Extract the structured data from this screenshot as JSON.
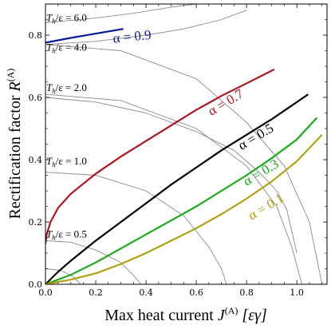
{
  "chart_data": {
    "type": "line",
    "title": "",
    "xlabel": "Max heat current J^(A) [εγ]",
    "ylabel": "Rectification factor R^(A)",
    "xlabel_parts": {
      "main": "Max heat current ",
      "sym": "J",
      "sup": "(A)",
      "unit": "[εγ]"
    },
    "ylabel_parts": {
      "main": "Rectification factor ",
      "sym": "R",
      "sup": "(A)"
    },
    "xlim": [
      0,
      1.12
    ],
    "ylim": [
      0,
      0.9
    ],
    "xticks": [
      0.0,
      0.2,
      0.4,
      0.6,
      0.8,
      1.0
    ],
    "yticks": [
      0.0,
      0.2,
      0.4,
      0.6,
      0.8
    ],
    "xtick_labels": [
      "0.0",
      "0.2",
      "0.4",
      "0.6",
      "0.8",
      "1.0"
    ],
    "ytick_labels": [
      "0.0",
      "0.2",
      "0.4",
      "0.6",
      "0.8"
    ],
    "grid": false,
    "series": [
      {
        "name": "α = 0.9",
        "color": "#0d1a9a",
        "x": [
          0.0,
          0.1,
          0.2,
          0.31
        ],
        "y": [
          0.776,
          0.791,
          0.805,
          0.82
        ]
      },
      {
        "name": "α = 0.7",
        "color": "#b0141e",
        "x": [
          0.0,
          0.005,
          0.02,
          0.05,
          0.1,
          0.2,
          0.3,
          0.4,
          0.5,
          0.6,
          0.7,
          0.8,
          0.91
        ],
        "y": [
          0.13,
          0.16,
          0.2,
          0.245,
          0.29,
          0.355,
          0.41,
          0.46,
          0.51,
          0.56,
          0.605,
          0.645,
          0.69
        ]
      },
      {
        "name": "α = 0.5",
        "color": "#000000",
        "x": [
          0.0,
          0.05,
          0.1,
          0.2,
          0.3,
          0.4,
          0.5,
          0.6,
          0.7,
          0.8,
          0.9,
          1.0,
          1.045
        ],
        "y": [
          0.0,
          0.04,
          0.075,
          0.14,
          0.2,
          0.26,
          0.32,
          0.375,
          0.43,
          0.48,
          0.53,
          0.585,
          0.61
        ]
      },
      {
        "name": "α = 0.3",
        "color": "#1aaa1a",
        "x": [
          0.0,
          0.1,
          0.2,
          0.3,
          0.4,
          0.5,
          0.6,
          0.7,
          0.8,
          0.9,
          1.0,
          1.08
        ],
        "y": [
          0.0,
          0.03,
          0.07,
          0.115,
          0.16,
          0.205,
          0.25,
          0.3,
          0.35,
          0.405,
          0.465,
          0.535
        ]
      },
      {
        "name": "α = 0.1",
        "color": "#b0a012",
        "x": [
          0.0,
          0.1,
          0.2,
          0.3,
          0.4,
          0.5,
          0.6,
          0.7,
          0.8,
          0.9,
          1.0,
          1.1
        ],
        "y": [
          0.0,
          0.015,
          0.035,
          0.065,
          0.1,
          0.14,
          0.18,
          0.225,
          0.275,
          0.33,
          0.395,
          0.48
        ]
      }
    ],
    "temperature_curves": {
      "color": "#8a8a8a",
      "description_points": [
        {
          "label": "T_h/ε = 6.0",
          "x": [
            0.0,
            0.2,
            0.35,
            0.5,
            0.6
          ],
          "y": [
            0.84,
            0.855,
            0.87,
            0.89,
            0.9
          ]
        },
        {
          "label": "T_h/ε = 4.0",
          "x": [
            0.0,
            0.2,
            0.4,
            0.55,
            0.7,
            0.8
          ],
          "y": [
            0.77,
            0.78,
            0.8,
            0.82,
            0.85,
            0.88
          ]
        },
        {
          "label": "T_h/ε = 2.0",
          "x": [
            0.0,
            0.2,
            0.4,
            0.6,
            0.75,
            0.85,
            0.92,
            0.96,
            1.0
          ],
          "y": [
            0.6,
            0.585,
            0.55,
            0.49,
            0.43,
            0.36,
            0.3,
            0.24,
            0.1
          ]
        },
        {
          "label": "T_h/ε = 1.0",
          "x": [
            0.0,
            0.2,
            0.4,
            0.55,
            0.65,
            0.7,
            0.72
          ],
          "y": [
            0.36,
            0.35,
            0.3,
            0.22,
            0.12,
            0.05,
            0.0
          ]
        },
        {
          "label": "T_h/ε = 0.5",
          "x": [
            0.0,
            0.1,
            0.2,
            0.3,
            0.36,
            0.38
          ],
          "y": [
            0.14,
            0.135,
            0.11,
            0.07,
            0.02,
            0.0
          ]
        },
        {
          "label": "",
          "x": [
            0.0,
            0.06,
            0.11,
            0.14
          ],
          "y": [
            0.05,
            0.045,
            0.025,
            0.0
          ]
        },
        {
          "label": "",
          "x": [
            0.0,
            0.3,
            0.6,
            0.8,
            0.92,
            0.98,
            1.02
          ],
          "y": [
            0.61,
            0.59,
            0.5,
            0.38,
            0.25,
            0.12,
            0.0
          ]
        },
        {
          "label": "",
          "x": [
            0.0,
            0.3,
            0.6,
            0.8,
            0.95,
            1.05,
            1.1
          ],
          "y": [
            0.77,
            0.75,
            0.66,
            0.52,
            0.38,
            0.2,
            0.0
          ]
        }
      ]
    },
    "annotations": [
      {
        "text": "T_h/ε = 6.0",
        "x": 0.0,
        "y": 0.845
      },
      {
        "text": "T_h/ε = 4.0",
        "x": 0.0,
        "y": 0.75
      },
      {
        "text": "T_h/ε = 2.0",
        "x": 0.0,
        "y": 0.62
      },
      {
        "text": "T_h/ε = 1.0",
        "x": 0.0,
        "y": 0.385
      },
      {
        "text": "T_h/ε = 0.5",
        "x": 0.0,
        "y": 0.15
      }
    ],
    "series_labels": [
      {
        "text": "α = 0.9",
        "x": 0.27,
        "y": 0.775,
        "rotate": -6
      },
      {
        "text": "α = 0.7",
        "x": 0.66,
        "y": 0.54,
        "rotate": -31
      },
      {
        "text": "α = 0.5",
        "x": 0.78,
        "y": 0.43,
        "rotate": -31
      },
      {
        "text": "α = 0.3",
        "x": 0.8,
        "y": 0.315,
        "rotate": -31
      },
      {
        "text": "α = 0.1",
        "x": 0.82,
        "y": 0.205,
        "rotate": -31
      }
    ]
  }
}
